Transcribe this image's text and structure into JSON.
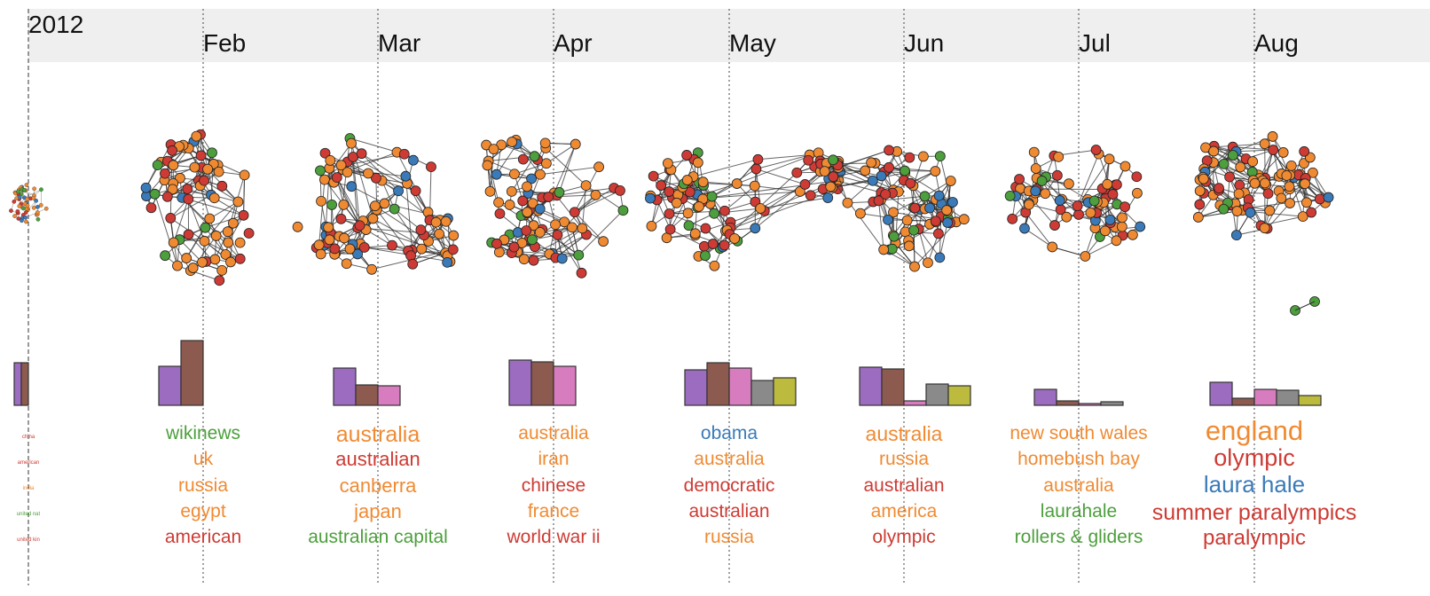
{
  "timeline": {
    "year": "2012",
    "months": [
      "Feb",
      "Mar",
      "Apr",
      "May",
      "Jun",
      "Jul",
      "Aug"
    ]
  },
  "colors": {
    "orange": "#f08a32",
    "red": "#cd3b34",
    "green": "#4c9f3c",
    "blue": "#3b7ab8",
    "purple": "#9b6cc0",
    "brown": "#8c5a4e",
    "pink": "#d87cc0",
    "gray": "#8a8a8a",
    "olive": "#bcbb3e"
  },
  "chart_data": {
    "type": "bar",
    "periods": [
      {
        "label": "2012",
        "bars": [
          {
            "color": "purple",
            "value": 48
          },
          {
            "color": "brown",
            "value": 48
          }
        ],
        "keywords": [
          {
            "text": "china",
            "color": "red"
          },
          {
            "text": "american",
            "color": "red"
          },
          {
            "text": "india",
            "color": "orange"
          },
          {
            "text": "united nat",
            "color": "green"
          },
          {
            "text": "united kin",
            "color": "red"
          }
        ]
      },
      {
        "label": "Feb",
        "bars": [
          {
            "color": "purple",
            "value": 44
          },
          {
            "color": "brown",
            "value": 73
          }
        ],
        "keywords": [
          {
            "text": "wikinews",
            "color": "green"
          },
          {
            "text": "uk",
            "color": "orange"
          },
          {
            "text": "russia",
            "color": "orange"
          },
          {
            "text": "egypt",
            "color": "orange"
          },
          {
            "text": "american",
            "color": "red"
          }
        ]
      },
      {
        "label": "Mar",
        "bars": [
          {
            "color": "purple",
            "value": 42
          },
          {
            "color": "brown",
            "value": 23
          },
          {
            "color": "pink",
            "value": 22
          }
        ],
        "keywords": [
          {
            "text": "australia",
            "color": "orange"
          },
          {
            "text": "australian",
            "color": "red"
          },
          {
            "text": "canberra",
            "color": "orange"
          },
          {
            "text": "japan",
            "color": "orange"
          },
          {
            "text": "australian capital",
            "color": "green"
          }
        ]
      },
      {
        "label": "Apr",
        "bars": [
          {
            "color": "purple",
            "value": 51
          },
          {
            "color": "brown",
            "value": 49
          },
          {
            "color": "pink",
            "value": 44
          }
        ],
        "keywords": [
          {
            "text": "australia",
            "color": "orange"
          },
          {
            "text": "iran",
            "color": "orange"
          },
          {
            "text": "chinese",
            "color": "red"
          },
          {
            "text": "france",
            "color": "orange"
          },
          {
            "text": "world war ii",
            "color": "red"
          }
        ]
      },
      {
        "label": "May",
        "bars": [
          {
            "color": "purple",
            "value": 40
          },
          {
            "color": "brown",
            "value": 48
          },
          {
            "color": "pink",
            "value": 42
          },
          {
            "color": "gray",
            "value": 28
          },
          {
            "color": "olive",
            "value": 31
          }
        ],
        "keywords": [
          {
            "text": "obama",
            "color": "blue"
          },
          {
            "text": "australia",
            "color": "orange"
          },
          {
            "text": "democratic",
            "color": "red"
          },
          {
            "text": "australian",
            "color": "red"
          },
          {
            "text": "russia",
            "color": "orange"
          }
        ]
      },
      {
        "label": "Jun",
        "bars": [
          {
            "color": "purple",
            "value": 43
          },
          {
            "color": "brown",
            "value": 41
          },
          {
            "color": "pink",
            "value": 5
          },
          {
            "color": "gray",
            "value": 24
          },
          {
            "color": "olive",
            "value": 22
          }
        ],
        "keywords": [
          {
            "text": "australia",
            "color": "orange"
          },
          {
            "text": "russia",
            "color": "orange"
          },
          {
            "text": "australian",
            "color": "red"
          },
          {
            "text": "america",
            "color": "orange"
          },
          {
            "text": "olympic",
            "color": "red"
          }
        ]
      },
      {
        "label": "Jul",
        "bars": [
          {
            "color": "purple",
            "value": 18
          },
          {
            "color": "brown",
            "value": 5
          },
          {
            "color": "pink",
            "value": 2
          },
          {
            "color": "gray",
            "value": 4
          }
        ],
        "keywords": [
          {
            "text": "new south wales",
            "color": "orange"
          },
          {
            "text": "homebush bay",
            "color": "orange"
          },
          {
            "text": "australia",
            "color": "orange"
          },
          {
            "text": "laurahale",
            "color": "green"
          },
          {
            "text": "rollers & gliders",
            "color": "green"
          }
        ]
      },
      {
        "label": "Aug",
        "bars": [
          {
            "color": "purple",
            "value": 26
          },
          {
            "color": "brown",
            "value": 8
          },
          {
            "color": "pink",
            "value": 18
          },
          {
            "color": "gray",
            "value": 17
          },
          {
            "color": "olive",
            "value": 11
          }
        ],
        "keywords": [
          {
            "text": "england",
            "color": "orange"
          },
          {
            "text": "olympic",
            "color": "red"
          },
          {
            "text": "laura hale",
            "color": "blue"
          },
          {
            "text": "summer paralympics",
            "color": "red"
          },
          {
            "text": "paralympic",
            "color": "red"
          }
        ]
      }
    ]
  }
}
